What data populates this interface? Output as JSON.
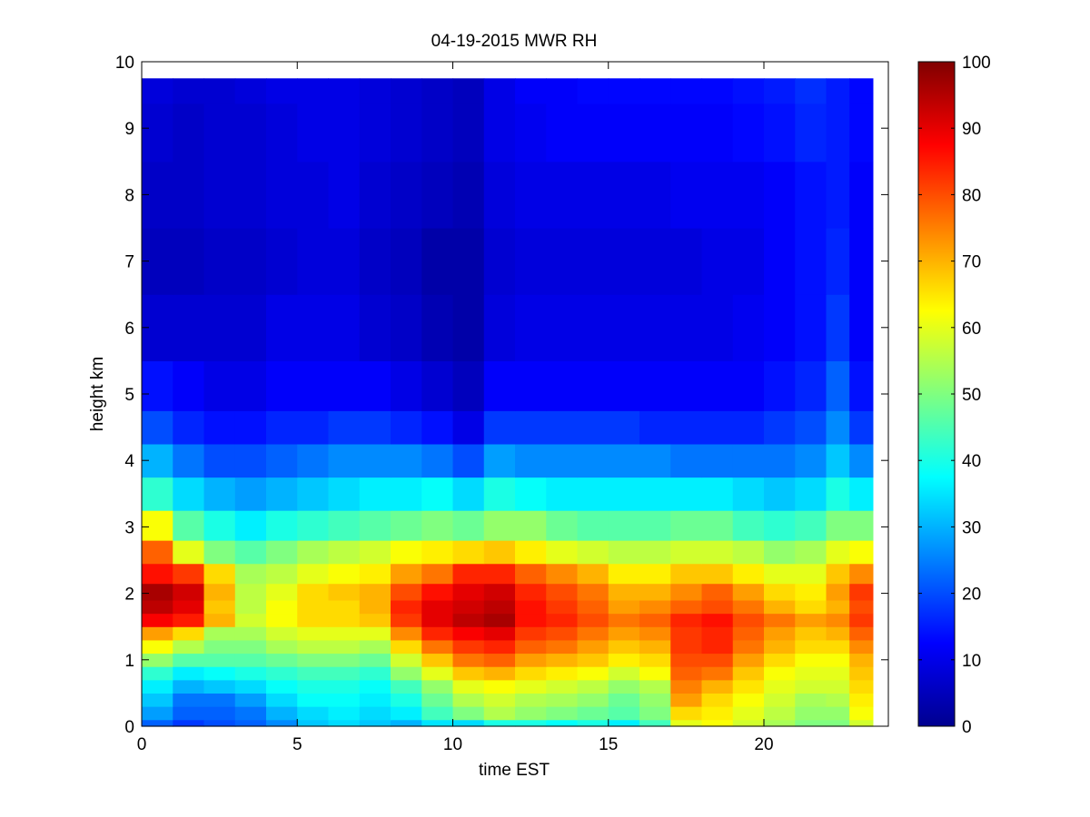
{
  "chart_data": {
    "type": "heatmap",
    "title": "04-19-2015 MWR RH",
    "xlabel": "time EST",
    "ylabel": "height km",
    "xlim": [
      0,
      24
    ],
    "ylim": [
      0,
      10
    ],
    "x_ticks": [
      "0",
      "5",
      "10",
      "15",
      "20"
    ],
    "y_ticks": [
      "0",
      "1",
      "2",
      "3",
      "4",
      "5",
      "6",
      "7",
      "8",
      "9",
      "10"
    ],
    "colorbar": {
      "colormap": "jet",
      "range": [
        0,
        100
      ],
      "ticks": [
        "0",
        "10",
        "20",
        "30",
        "40",
        "50",
        "60",
        "70",
        "80",
        "90",
        "100"
      ]
    },
    "data_extent": {
      "x": [
        0,
        23.5
      ],
      "y": [
        0,
        9.75
      ]
    },
    "time_hours": [
      0.5,
      1.5,
      2.5,
      3.5,
      4.5,
      5.5,
      6.5,
      7.5,
      8.5,
      9.5,
      10.5,
      11.5,
      12.5,
      13.5,
      14.5,
      15.5,
      16.5,
      17.5,
      18.5,
      19.5,
      20.5,
      21.5,
      22.5,
      23.0
    ],
    "height_km": [
      0,
      0.2,
      0.4,
      0.6,
      0.8,
      1.0,
      1.2,
      1.4,
      1.6,
      1.8,
      2.0,
      2.3,
      2.6,
      3.0,
      3.5,
      4.0,
      4.5,
      5.0,
      6.0,
      7.0,
      8.0,
      9.0,
      9.75
    ],
    "rh_percent": [
      [
        22,
        18,
        20,
        22,
        26,
        32,
        34,
        32,
        30,
        35,
        34,
        40,
        40,
        38,
        40,
        36,
        44,
        60,
        62,
        58,
        54,
        50,
        50,
        58
      ],
      [
        28,
        22,
        22,
        24,
        30,
        34,
        36,
        34,
        36,
        44,
        50,
        55,
        52,
        50,
        48,
        46,
        50,
        66,
        64,
        60,
        56,
        52,
        52,
        62
      ],
      [
        32,
        24,
        24,
        28,
        34,
        38,
        38,
        36,
        40,
        48,
        55,
        58,
        55,
        54,
        52,
        48,
        52,
        72,
        66,
        62,
        58,
        54,
        55,
        64
      ],
      [
        36,
        30,
        32,
        34,
        38,
        40,
        40,
        38,
        44,
        52,
        60,
        62,
        60,
        58,
        56,
        52,
        55,
        75,
        70,
        65,
        60,
        58,
        58,
        66
      ],
      [
        42,
        36,
        38,
        40,
        42,
        44,
        44,
        42,
        52,
        60,
        68,
        70,
        66,
        64,
        62,
        58,
        62,
        78,
        76,
        68,
        62,
        60,
        60,
        68
      ],
      [
        52,
        46,
        46,
        46,
        48,
        50,
        50,
        48,
        58,
        68,
        76,
        78,
        72,
        70,
        68,
        64,
        66,
        80,
        80,
        72,
        66,
        62,
        62,
        70
      ],
      [
        62,
        55,
        50,
        50,
        54,
        56,
        56,
        54,
        66,
        76,
        82,
        84,
        78,
        76,
        72,
        68,
        70,
        82,
        84,
        76,
        70,
        66,
        66,
        74
      ],
      [
        72,
        66,
        54,
        54,
        58,
        60,
        60,
        60,
        74,
        84,
        88,
        90,
        82,
        80,
        76,
        72,
        74,
        82,
        84,
        78,
        72,
        68,
        70,
        78
      ],
      [
        88,
        85,
        70,
        58,
        62,
        66,
        66,
        68,
        82,
        90,
        94,
        96,
        86,
        84,
        80,
        76,
        78,
        84,
        86,
        80,
        76,
        72,
        74,
        82
      ],
      [
        94,
        90,
        68,
        56,
        62,
        66,
        66,
        70,
        84,
        90,
        92,
        94,
        86,
        82,
        78,
        72,
        74,
        78,
        80,
        76,
        70,
        66,
        70,
        80
      ],
      [
        96,
        92,
        70,
        56,
        60,
        66,
        68,
        70,
        80,
        86,
        90,
        92,
        84,
        80,
        76,
        70,
        70,
        74,
        78,
        72,
        66,
        64,
        72,
        82
      ],
      [
        86,
        82,
        66,
        54,
        56,
        60,
        62,
        64,
        72,
        76,
        84,
        84,
        78,
        74,
        70,
        64,
        64,
        68,
        68,
        64,
        60,
        60,
        68,
        74
      ],
      [
        78,
        60,
        50,
        46,
        50,
        54,
        56,
        58,
        62,
        64,
        66,
        68,
        64,
        60,
        58,
        56,
        56,
        58,
        58,
        56,
        52,
        54,
        60,
        62
      ],
      [
        62,
        46,
        40,
        36,
        40,
        42,
        44,
        46,
        48,
        50,
        48,
        52,
        52,
        48,
        46,
        46,
        46,
        48,
        48,
        44,
        42,
        44,
        50,
        50
      ],
      [
        42,
        34,
        30,
        28,
        30,
        32,
        34,
        36,
        36,
        38,
        34,
        40,
        38,
        36,
        36,
        36,
        36,
        36,
        36,
        34,
        32,
        34,
        40,
        36
      ],
      [
        30,
        24,
        20,
        20,
        22,
        24,
        26,
        26,
        26,
        24,
        20,
        28,
        26,
        26,
        26,
        26,
        26,
        24,
        24,
        24,
        24,
        26,
        32,
        26
      ],
      [
        20,
        16,
        14,
        14,
        16,
        16,
        18,
        18,
        16,
        14,
        10,
        18,
        18,
        18,
        18,
        18,
        16,
        16,
        16,
        16,
        18,
        20,
        26,
        18
      ],
      [
        14,
        12,
        10,
        10,
        12,
        12,
        12,
        12,
        10,
        8,
        6,
        12,
        12,
        12,
        12,
        12,
        12,
        12,
        12,
        12,
        14,
        16,
        22,
        14
      ],
      [
        8,
        8,
        8,
        8,
        10,
        10,
        10,
        8,
        7,
        5,
        4,
        9,
        10,
        10,
        10,
        10,
        10,
        10,
        10,
        11,
        12,
        14,
        18,
        12
      ],
      [
        6,
        6,
        7,
        7,
        8,
        9,
        9,
        7,
        6,
        4,
        4,
        8,
        9,
        9,
        9,
        9,
        9,
        9,
        10,
        10,
        12,
        14,
        16,
        12
      ],
      [
        7,
        7,
        8,
        8,
        9,
        9,
        10,
        8,
        7,
        6,
        5,
        9,
        10,
        10,
        10,
        10,
        10,
        11,
        11,
        11,
        12,
        14,
        15,
        12
      ],
      [
        8,
        7,
        8,
        8,
        9,
        10,
        10,
        9,
        8,
        7,
        6,
        10,
        11,
        12,
        12,
        12,
        12,
        12,
        12,
        13,
        14,
        16,
        15,
        13
      ],
      [
        9,
        8,
        8,
        9,
        10,
        10,
        10,
        9,
        8,
        7,
        6,
        10,
        12,
        12,
        13,
        13,
        13,
        13,
        13,
        14,
        15,
        17,
        15,
        13
      ]
    ]
  }
}
